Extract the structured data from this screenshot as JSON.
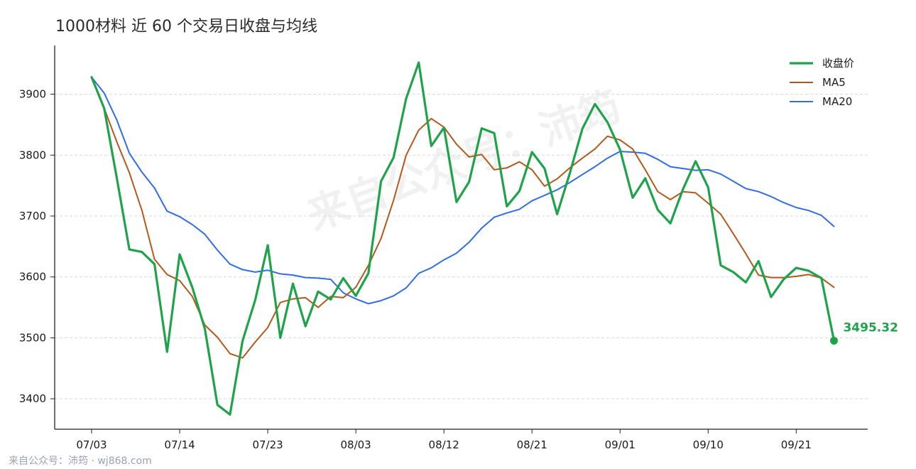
{
  "chart_data": {
    "type": "line",
    "title": "1000材料 近 60 个交易日收盘与均线",
    "xlabel": "",
    "ylabel": "",
    "ylim": [
      3350,
      3980
    ],
    "yticks": [
      3400,
      3500,
      3600,
      3700,
      3800,
      3900
    ],
    "x_tick_labels": [
      "07/03",
      "07/14",
      "07/23",
      "08/03",
      "08/12",
      "08/21",
      "09/01",
      "09/10",
      "09/21"
    ],
    "x_tick_indices": [
      0,
      7,
      14,
      21,
      28,
      35,
      42,
      49,
      56
    ],
    "grid": true,
    "legend_position": "top-right",
    "series": [
      {
        "name": "收盘价",
        "color": "#1fa34a",
        "values": [
          3928,
          3877,
          3763,
          3645,
          3641,
          3621,
          3477,
          3637,
          3583,
          3515,
          3390,
          3374,
          3495,
          3562,
          3652,
          3500,
          3589,
          3519,
          3576,
          3563,
          3598,
          3569,
          3606,
          3757,
          3796,
          3893,
          3952,
          3815,
          3845,
          3723,
          3756,
          3844,
          3836,
          3716,
          3741,
          3805,
          3778,
          3703,
          3770,
          3843,
          3884,
          3854,
          3809,
          3730,
          3762,
          3710,
          3688,
          3744,
          3790,
          3747,
          3619,
          3608,
          3591,
          3626,
          3567,
          3596,
          3615,
          3610,
          3598,
          3495.32
        ]
      },
      {
        "name": "MA5",
        "color": "#b5581c",
        "values": [
          3928,
          3877,
          3822,
          3771,
          3709,
          3629,
          3604,
          3594,
          3568,
          3521,
          3501,
          3474,
          3467,
          3493,
          3517,
          3558,
          3564,
          3566,
          3550,
          3568,
          3566,
          3583,
          3619,
          3663,
          3726,
          3800,
          3841,
          3860,
          3846,
          3818,
          3797,
          3801,
          3776,
          3779,
          3789,
          3776,
          3749,
          3761,
          3779,
          3795,
          3810,
          3831,
          3825,
          3810,
          3776,
          3740,
          3727,
          3740,
          3738,
          3721,
          3703,
          3671,
          3638,
          3603,
          3599,
          3599,
          3601,
          3604,
          3598,
          3583
        ]
      },
      {
        "name": "MA20",
        "color": "#2f6ee8",
        "values": [
          3928,
          3902,
          3858,
          3803,
          3772,
          3746,
          3708,
          3699,
          3686,
          3670,
          3644,
          3621,
          3612,
          3608,
          3611,
          3605,
          3603,
          3599,
          3598,
          3596,
          3574,
          3564,
          3556,
          3561,
          3569,
          3582,
          3606,
          3615,
          3628,
          3639,
          3657,
          3680,
          3698,
          3705,
          3711,
          3725,
          3734,
          3743,
          3755,
          3768,
          3781,
          3795,
          3806,
          3805,
          3803,
          3793,
          3781,
          3778,
          3775,
          3776,
          3769,
          3757,
          3745,
          3740,
          3732,
          3722,
          3714,
          3709,
          3701,
          3683
        ]
      }
    ],
    "last_close_label": "3495.32"
  },
  "watermark": "来自公众号：沛筠",
  "footer": "来自公众号：沛筠 · wj868.com"
}
